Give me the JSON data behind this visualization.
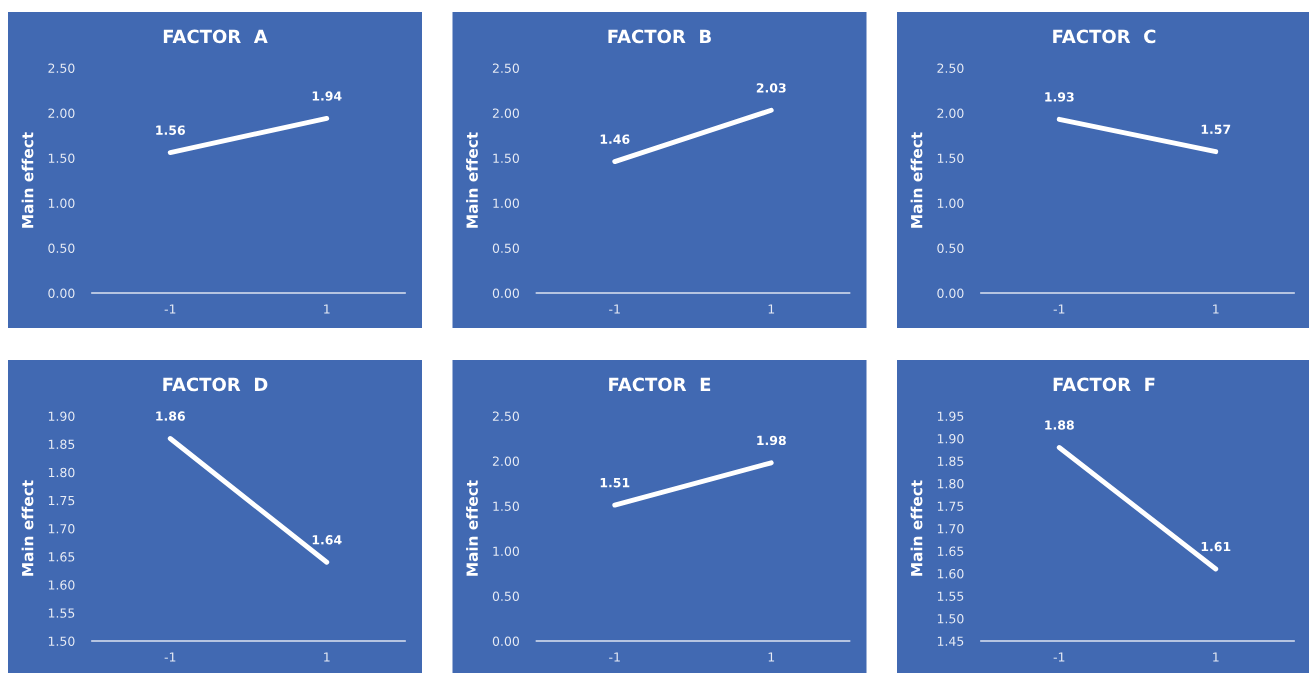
{
  "chart_data": [
    {
      "type": "line",
      "title": "FACTOR  A",
      "ylabel": "Main effect",
      "categories": [
        "-1",
        "1"
      ],
      "series": [
        {
          "color": "#ffffff",
          "values": [
            1.56,
            1.94
          ]
        }
      ],
      "ylim": [
        0,
        2.5
      ],
      "yticks": [
        {
          "value": 0,
          "label": "0.00"
        },
        {
          "value": 0.5,
          "label": "0.50"
        },
        {
          "value": 1,
          "label": "1.00"
        },
        {
          "value": 1.5,
          "label": "1.50"
        },
        {
          "value": 2,
          "label": "2.00"
        },
        {
          "value": 2.5,
          "label": "2.50"
        }
      ],
      "data_labels": true,
      "grid": false
    },
    {
      "type": "line",
      "title": "FACTOR  B",
      "ylabel": "Main effect",
      "categories": [
        "-1",
        "1"
      ],
      "series": [
        {
          "color": "#ffffff",
          "values": [
            1.46,
            2.03
          ]
        }
      ],
      "ylim": [
        0,
        2.5
      ],
      "yticks": [
        {
          "value": 0,
          "label": "0.00"
        },
        {
          "value": 0.5,
          "label": "0.50"
        },
        {
          "value": 1,
          "label": "1.00"
        },
        {
          "value": 1.5,
          "label": "1.50"
        },
        {
          "value": 2,
          "label": "2.00"
        },
        {
          "value": 2.5,
          "label": "2.50"
        }
      ],
      "data_labels": true,
      "grid": false
    },
    {
      "type": "line",
      "title": "FACTOR  C",
      "ylabel": "Main effect",
      "categories": [
        "-1",
        "1"
      ],
      "series": [
        {
          "color": "#ffffff",
          "values": [
            1.93,
            1.57
          ]
        }
      ],
      "ylim": [
        0,
        2.5
      ],
      "yticks": [
        {
          "value": 0,
          "label": "0.00"
        },
        {
          "value": 0.5,
          "label": "0.50"
        },
        {
          "value": 1,
          "label": "1.00"
        },
        {
          "value": 1.5,
          "label": "1.50"
        },
        {
          "value": 2,
          "label": "2.00"
        },
        {
          "value": 2.5,
          "label": "2.50"
        }
      ],
      "data_labels": true,
      "grid": false
    },
    {
      "type": "line",
      "title": "FACTOR  D",
      "ylabel": "Main effect",
      "categories": [
        "-1",
        "1"
      ],
      "series": [
        {
          "color": "#ffffff",
          "values": [
            1.86,
            1.64
          ]
        }
      ],
      "ylim": [
        1.5,
        1.9
      ],
      "yticks": [
        {
          "value": 1.5,
          "label": "1.50"
        },
        {
          "value": 1.55,
          "label": "1.55"
        },
        {
          "value": 1.6,
          "label": "1.60"
        },
        {
          "value": 1.65,
          "label": "1.65"
        },
        {
          "value": 1.7,
          "label": "1.70"
        },
        {
          "value": 1.75,
          "label": "1.75"
        },
        {
          "value": 1.8,
          "label": "1.80"
        },
        {
          "value": 1.85,
          "label": "1.85"
        },
        {
          "value": 1.9,
          "label": "1.90"
        }
      ],
      "data_labels": true,
      "grid": false
    },
    {
      "type": "line",
      "title": "FACTOR  E",
      "ylabel": "Main effect",
      "categories": [
        "-1",
        "1"
      ],
      "series": [
        {
          "color": "#ffffff",
          "values": [
            1.51,
            1.98
          ]
        }
      ],
      "ylim": [
        0,
        2.5
      ],
      "yticks": [
        {
          "value": 0,
          "label": "0.00"
        },
        {
          "value": 0.5,
          "label": "0.50"
        },
        {
          "value": 1,
          "label": "1.00"
        },
        {
          "value": 1.5,
          "label": "1.50"
        },
        {
          "value": 2,
          "label": "2.00"
        },
        {
          "value": 2.5,
          "label": "2.50"
        }
      ],
      "data_labels": true,
      "grid": false
    },
    {
      "type": "line",
      "title": "FACTOR  F",
      "ylabel": "Main effect",
      "categories": [
        "-1",
        "1"
      ],
      "series": [
        {
          "color": "#ffffff",
          "values": [
            1.88,
            1.61
          ]
        }
      ],
      "ylim": [
        1.45,
        1.95
      ],
      "yticks": [
        {
          "value": 1.45,
          "label": "1.45"
        },
        {
          "value": 1.5,
          "label": "1.50"
        },
        {
          "value": 1.55,
          "label": "1.55"
        },
        {
          "value": 1.6,
          "label": "1.60"
        },
        {
          "value": 1.65,
          "label": "1.65"
        },
        {
          "value": 1.7,
          "label": "1.70"
        },
        {
          "value": 1.75,
          "label": "1.75"
        },
        {
          "value": 1.8,
          "label": "1.80"
        },
        {
          "value": 1.85,
          "label": "1.85"
        },
        {
          "value": 1.9,
          "label": "1.90"
        },
        {
          "value": 1.95,
          "label": "1.95"
        }
      ],
      "data_labels": true,
      "grid": false
    }
  ]
}
